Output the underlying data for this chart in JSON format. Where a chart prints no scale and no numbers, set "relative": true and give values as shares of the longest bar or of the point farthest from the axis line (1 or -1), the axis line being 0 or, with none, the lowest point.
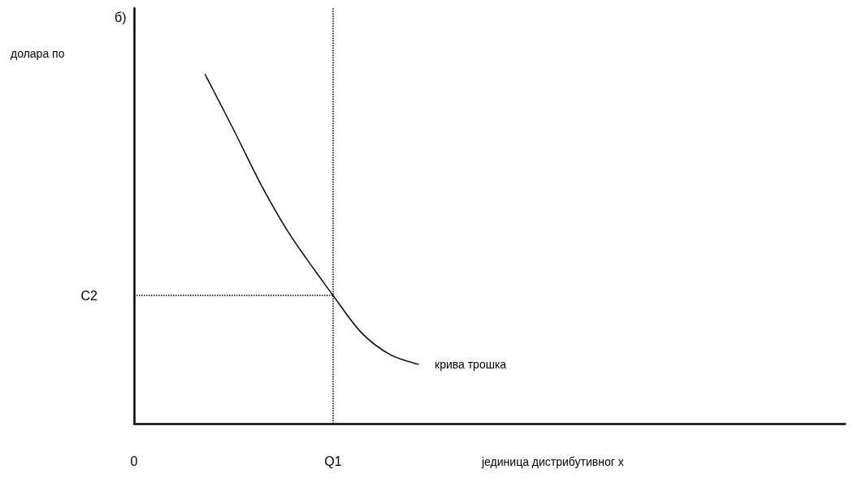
{
  "chart_data": {
    "type": "line",
    "relative": true,
    "title": "б)",
    "annotations": [
      "долара по"
    ],
    "xlabel": "јединица дистрибутивног х",
    "categories": [
      "0",
      null,
      null,
      null,
      null,
      null,
      null,
      null,
      null,
      null,
      null,
      null,
      null,
      null,
      "Q1",
      null,
      null,
      null,
      null,
      null,
      null,
      null,
      null,
      null,
      null,
      null,
      null,
      null,
      null,
      null,
      null,
      null,
      null,
      null,
      null,
      null,
      null,
      null,
      null,
      null,
      null,
      null,
      null,
      null,
      null,
      null,
      null,
      null,
      null,
      null,
      null
    ],
    "series": [
      {
        "name": "крива трошка",
        "color": "#000000",
        "values": [
          null,
          null,
          null,
          null,
          null,
          1,
          null,
          0.842,
          null,
          0.679,
          null,
          0.539,
          null,
          null,
          0.367,
          null,
          0.26,
          null,
          0.198,
          null,
          0.17,
          null,
          null,
          null,
          null,
          null,
          null,
          null,
          null,
          null,
          null,
          null,
          null,
          null,
          null,
          null,
          null,
          null,
          null,
          null,
          null,
          null,
          null,
          null,
          null,
          null,
          null,
          null,
          null,
          null,
          null
        ]
      }
    ],
    "ref_lines": [
      {
        "axis": "x",
        "value": "Q1",
        "line_style": "dotted"
      },
      {
        "axis": "y",
        "value": 0.367,
        "label": "C2",
        "line_style": "dotted"
      }
    ],
    "grid": false,
    "legend": false,
    "marker": "none",
    "line_style": "solid"
  }
}
